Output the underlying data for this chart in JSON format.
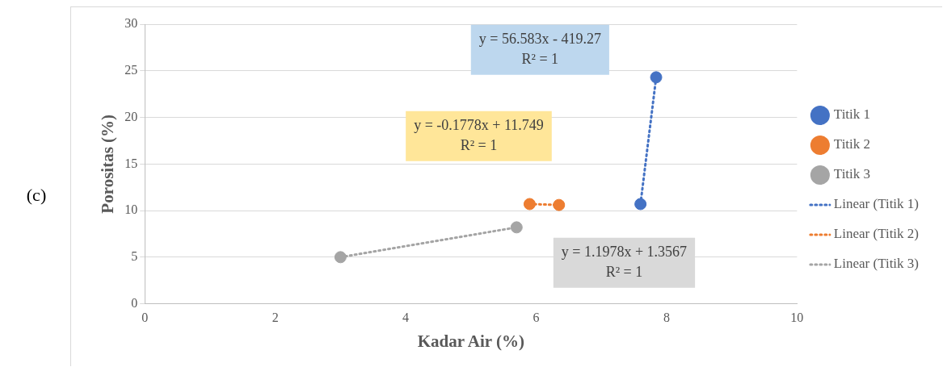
{
  "chart_data": {
    "type": "scatter",
    "xlabel": "Kadar Air (%)",
    "ylabel": "Porositas (%)",
    "xlim": [
      0,
      10
    ],
    "xticks": [
      0,
      2,
      4,
      6,
      8,
      10
    ],
    "ylim": [
      0,
      30
    ],
    "yticks": [
      0,
      5,
      10,
      15,
      20,
      25,
      30
    ],
    "grid": "y",
    "legend": "right",
    "marker": "circle",
    "series": [
      {
        "name": "Titik 1",
        "color": "#4472c4",
        "x": [
          7.6,
          7.84
        ],
        "values": [
          10.7,
          24.3
        ]
      },
      {
        "name": "Titik 2",
        "color": "#ed7d31",
        "x": [
          5.9,
          6.35
        ],
        "values": [
          10.7,
          10.6
        ]
      },
      {
        "name": "Titik 3",
        "color": "#a5a5a5",
        "x": [
          3,
          5.7
        ],
        "values": [
          5.0,
          8.2
        ]
      },
      {
        "name": "Linear (Titik 1)",
        "type": "line",
        "line_style": "dotted",
        "marker": "none",
        "color": "#4472c4",
        "x": [
          7.6,
          7.84
        ],
        "values": [
          10.7,
          24.3
        ]
      },
      {
        "name": "Linear (Titik 2)",
        "type": "line",
        "line_style": "dotted",
        "marker": "none",
        "color": "#ed7d31",
        "x": [
          5.9,
          6.35
        ],
        "values": [
          10.7,
          10.6
        ]
      },
      {
        "name": "Linear (Titik 3)",
        "type": "line",
        "line_style": "dotted",
        "marker": "none",
        "color": "#a5a5a5",
        "x": [
          3,
          5.7
        ],
        "values": [
          5.0,
          8.2
        ]
      }
    ],
    "annotations": [
      "y = 56.583x - 419.27\nR² = 1",
      "y = -0.1778x + 11.749\nR² = 1",
      "y = 1.1978x + 1.3567\nR² = 1",
      "(c)"
    ]
  }
}
